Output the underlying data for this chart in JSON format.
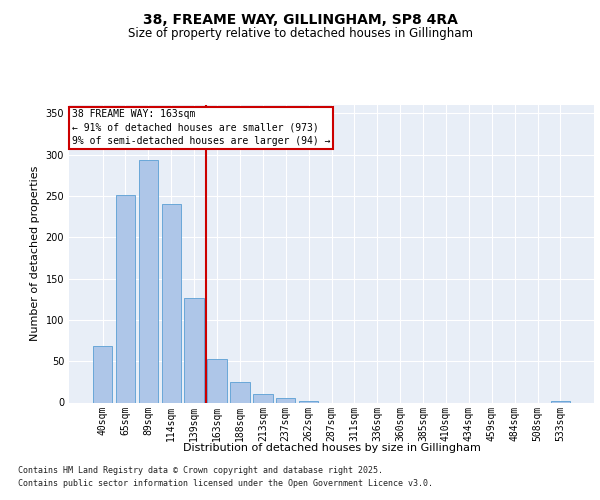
{
  "title": "38, FREAME WAY, GILLINGHAM, SP8 4RA",
  "subtitle": "Size of property relative to detached houses in Gillingham",
  "xlabel": "Distribution of detached houses by size in Gillingham",
  "ylabel": "Number of detached properties",
  "categories": [
    "40sqm",
    "65sqm",
    "89sqm",
    "114sqm",
    "139sqm",
    "163sqm",
    "188sqm",
    "213sqm",
    "237sqm",
    "262sqm",
    "287sqm",
    "311sqm",
    "336sqm",
    "360sqm",
    "385sqm",
    "410sqm",
    "434sqm",
    "459sqm",
    "484sqm",
    "508sqm",
    "533sqm"
  ],
  "values": [
    68,
    251,
    293,
    240,
    127,
    53,
    25,
    10,
    5,
    2,
    0,
    0,
    0,
    0,
    0,
    0,
    0,
    0,
    0,
    0,
    2
  ],
  "bar_color": "#aec6e8",
  "bar_edge_color": "#5a9fd4",
  "vline_index": 5,
  "vline_color": "#cc0000",
  "annotation_text": "38 FREAME WAY: 163sqm\n← 91% of detached houses are smaller (973)\n9% of semi-detached houses are larger (94) →",
  "annotation_box_color": "#ffffff",
  "annotation_box_edge_color": "#cc0000",
  "ylim": [
    0,
    360
  ],
  "yticks": [
    0,
    50,
    100,
    150,
    200,
    250,
    300,
    350
  ],
  "plot_bg_color": "#e8eef7",
  "title_fontsize": 10,
  "subtitle_fontsize": 8.5,
  "axis_label_fontsize": 8,
  "tick_fontsize": 7,
  "annotation_fontsize": 7,
  "footer_fontsize": 6,
  "footer_line1": "Contains HM Land Registry data © Crown copyright and database right 2025.",
  "footer_line2": "Contains public sector information licensed under the Open Government Licence v3.0."
}
